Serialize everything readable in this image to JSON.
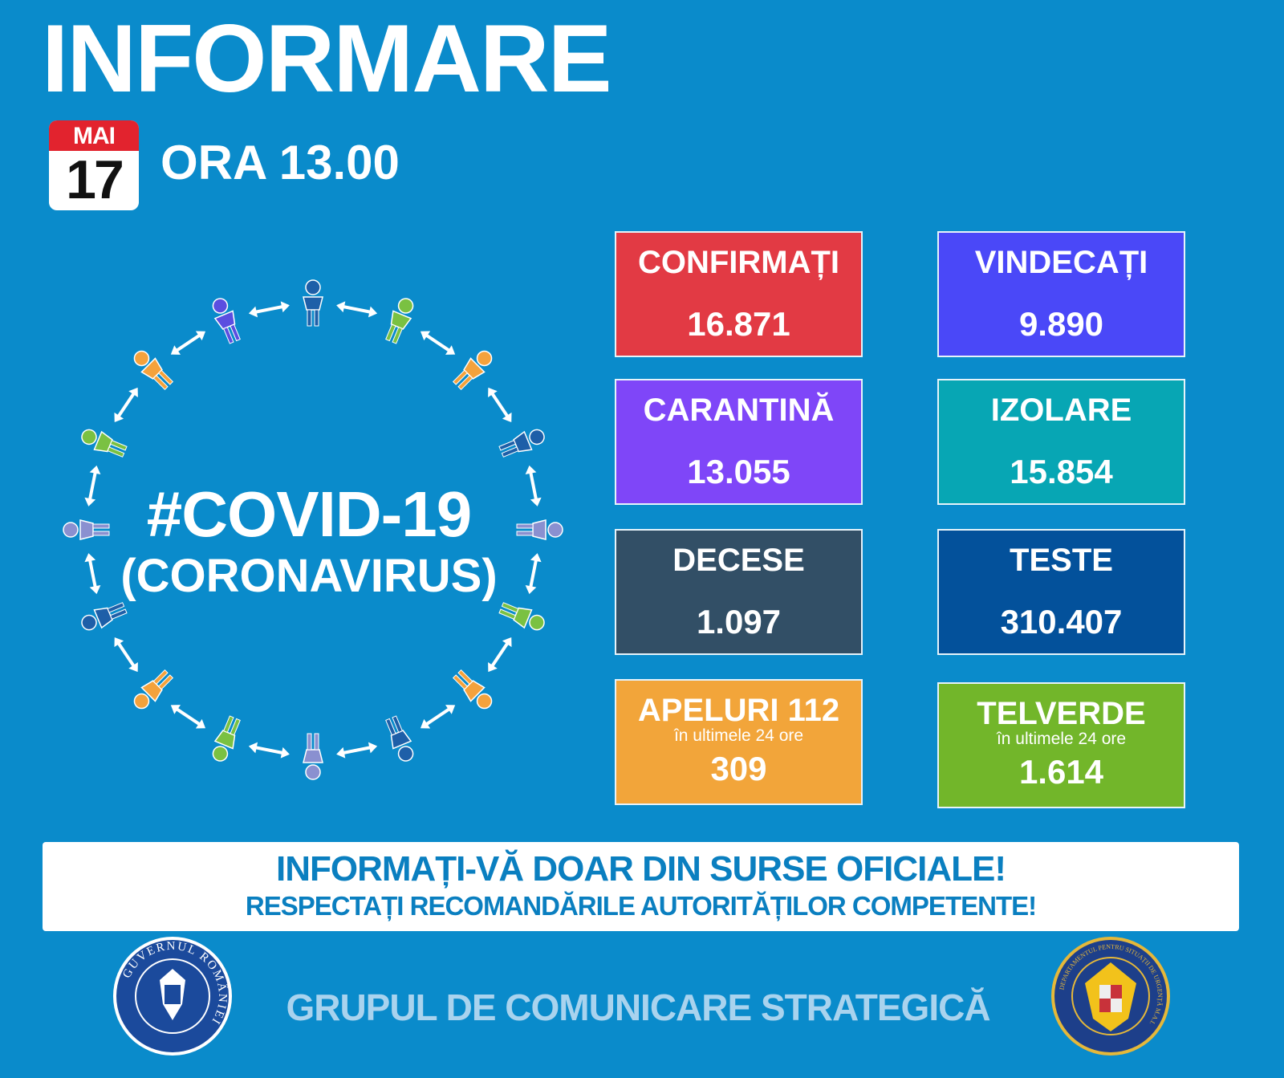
{
  "header": {
    "title": "INFORMARE",
    "calendar_month": "MAI",
    "calendar_day": "17",
    "time": "ORA 13.00"
  },
  "graphic": {
    "hashtag": "#COVID-19",
    "subtitle": "(CORONAVIRUS)",
    "figure_colors": [
      "#1e5fa8",
      "#7ac142",
      "#f4a23c",
      "#1e5fa8",
      "#8a90d0",
      "#7ac142",
      "#f4a23c",
      "#1e5fa8",
      "#8a90d0",
      "#7ac142",
      "#f4a23c",
      "#1e5fa8",
      "#8a90d0",
      "#7ac142",
      "#f4a23c",
      "#5b4ee0"
    ]
  },
  "stats": [
    {
      "label": "CONFIRMAȚI",
      "value": "16.871",
      "color": "#e23a44"
    },
    {
      "label": "VINDECAȚI",
      "value": "9.890",
      "color": "#4a48f8"
    },
    {
      "label": "CARANTINĂ",
      "value": "13.055",
      "color": "#7f46f8"
    },
    {
      "label": "IZOLARE",
      "value": "15.854",
      "color": "#07a6b4"
    },
    {
      "label": "DECESE",
      "value": "1.097",
      "color": "#324f66"
    },
    {
      "label": "TESTE",
      "value": "310.407",
      "color": "#03519b"
    },
    {
      "label": "APELURI 112",
      "sub": "în ultimele 24 ore",
      "value": "309",
      "color": "#f2a53a"
    },
    {
      "label": "TELVERDE",
      "sub": "în ultimele 24 ore",
      "value": "1.614",
      "color": "#72b62a"
    }
  ],
  "banner": {
    "line1": "INFORMAȚI-VĂ DOAR DIN SURSE OFICIALE!",
    "line2": "RESPECTAȚI RECOMANDĂRILE AUTORITĂȚILOR COMPETENTE!"
  },
  "footer": {
    "text": "GRUPUL DE COMUNICARE STRATEGICĂ",
    "left_logo_text": "GUVERNUL ROMÂNIEI",
    "right_logo_text": "DEPARTAMENTUL PENTRU SITUAȚII DE URGENȚĂ M.A.I."
  }
}
